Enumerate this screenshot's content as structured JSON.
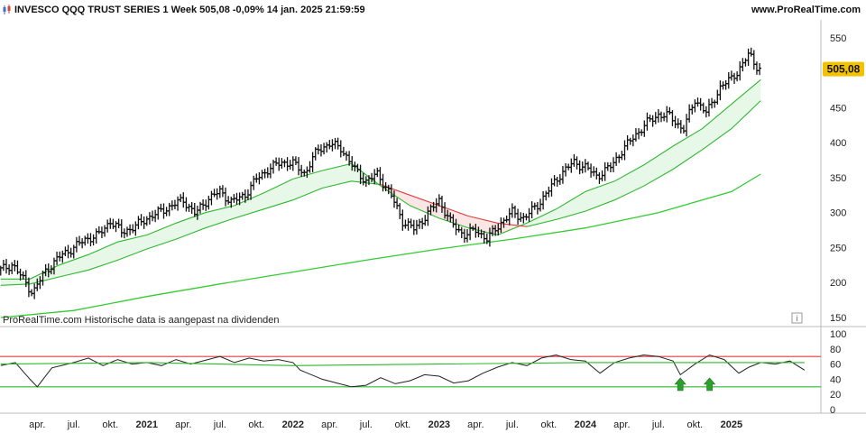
{
  "header": {
    "title": "INVESCO QQQ TRUST SERIES 1 Week 505,08 -0,09% 14 jan. 2025 21:59:59",
    "site": "www.ProRealTime.com"
  },
  "footer_note": "ProRealTime.com Historische data is aangepast na dividenden",
  "info_icon": "i",
  "colors": {
    "price_bars": "#111111",
    "ma_short": "#2eb82e",
    "ma_long": "#33cc33",
    "ma_bearish": "#e23b3b",
    "fill_green": "#e8f8e8",
    "fill_red": "#fbe6e6",
    "rsi_line": "#222222",
    "rsi_upper": "#e23b3b",
    "rsi_lower": "#2eb82e",
    "signal_arrow": "#2ca02c",
    "price_label_bg": "#f2c200"
  },
  "chart_data": [
    {
      "type": "ohlc",
      "name": "price",
      "timeframe": "Week",
      "last_price": "505,08",
      "ylim": [
        150,
        560
      ],
      "y_ticks": [
        150,
        200,
        250,
        300,
        350,
        400,
        450,
        500,
        550
      ],
      "x_ticks": [
        {
          "label": "apr.",
          "x": 2021.25
        },
        {
          "label": "jul.",
          "x": 2021.5
        },
        {
          "label": "okt.",
          "x": 2021.75
        },
        {
          "label": "2021",
          "x": 2022.0,
          "year": true
        },
        {
          "label": "apr.",
          "x": 2022.25
        },
        {
          "label": "jul.",
          "x": 2022.5
        },
        {
          "label": "okt.",
          "x": 2022.75
        },
        {
          "label": "2022",
          "x": 2023.0,
          "year": true
        },
        {
          "label": "apr.",
          "x": 2023.25
        },
        {
          "label": "jul.",
          "x": 2023.5
        },
        {
          "label": "okt.",
          "x": 2023.75
        },
        {
          "label": "2023",
          "x": 2024.0,
          "year": true
        },
        {
          "label": "apr.",
          "x": 2024.25
        },
        {
          "label": "jul.",
          "x": 2024.5
        },
        {
          "label": "okt.",
          "x": 2024.75
        },
        {
          "label": "2024",
          "x": 2025.0,
          "year": true
        },
        {
          "label": "apr.",
          "x": 2025.25
        },
        {
          "label": "jul.",
          "x": 2025.5
        },
        {
          "label": "okt.",
          "x": 2025.75
        },
        {
          "label": "2025",
          "x": 2026.0,
          "year": true
        }
      ],
      "series": [
        {
          "name": "close",
          "points": [
            [
              2021.0,
              218
            ],
            [
              2021.08,
              226
            ],
            [
              2021.17,
              200
            ],
            [
              2021.22,
              185
            ],
            [
              2021.3,
              215
            ],
            [
              2021.42,
              240
            ],
            [
              2021.5,
              250
            ],
            [
              2021.58,
              262
            ],
            [
              2021.67,
              268
            ],
            [
              2021.75,
              288
            ],
            [
              2021.83,
              272
            ],
            [
              2021.92,
              280
            ],
            [
              2022.0,
              292
            ],
            [
              2022.08,
              300
            ],
            [
              2022.17,
              310
            ],
            [
              2022.25,
              318
            ],
            [
              2022.33,
              298
            ],
            [
              2022.42,
              320
            ],
            [
              2022.5,
              330
            ],
            [
              2022.58,
              315
            ],
            [
              2022.67,
              325
            ],
            [
              2022.75,
              348
            ],
            [
              2022.83,
              362
            ],
            [
              2022.92,
              372
            ],
            [
              2023.0,
              370
            ],
            [
              2023.08,
              356
            ],
            [
              2023.17,
              390
            ],
            [
              2023.25,
              398
            ],
            [
              2023.33,
              392
            ],
            [
              2023.42,
              362
            ],
            [
              2023.5,
              345
            ],
            [
              2023.58,
              355
            ],
            [
              2023.67,
              325
            ],
            [
              2023.75,
              288
            ],
            [
              2023.83,
              276
            ],
            [
              2023.92,
              298
            ],
            [
              2024.0,
              318
            ],
            [
              2024.08,
              285
            ],
            [
              2024.17,
              268
            ],
            [
              2024.25,
              275
            ],
            [
              2024.33,
              262
            ],
            [
              2024.42,
              285
            ],
            [
              2024.5,
              300
            ],
            [
              2024.58,
              292
            ],
            [
              2024.67,
              310
            ],
            [
              2024.75,
              332
            ],
            [
              2024.83,
              355
            ],
            [
              2024.92,
              372
            ],
            [
              2025.0,
              365
            ],
            [
              2025.08,
              352
            ],
            [
              2025.17,
              365
            ],
            [
              2025.25,
              388
            ],
            [
              2025.33,
              408
            ],
            [
              2025.42,
              428
            ],
            [
              2025.5,
              440
            ],
            [
              2025.58,
              438
            ],
            [
              2025.67,
              418
            ],
            [
              2025.75,
              462
            ],
            [
              2025.83,
              442
            ],
            [
              2025.92,
              478
            ],
            [
              2026.0,
              492
            ],
            [
              2026.08,
              512
            ],
            [
              2026.12,
              528
            ],
            [
              2026.16,
              512
            ],
            [
              2026.2,
              505.08
            ]
          ]
        },
        {
          "name": "MA short",
          "points": [
            [
              2021.0,
              205
            ],
            [
              2021.2,
              205
            ],
            [
              2021.4,
              225
            ],
            [
              2021.6,
              240
            ],
            [
              2021.8,
              258
            ],
            [
              2022.0,
              268
            ],
            [
              2022.2,
              285
            ],
            [
              2022.4,
              300
            ],
            [
              2022.6,
              310
            ],
            [
              2022.8,
              328
            ],
            [
              2023.0,
              348
            ],
            [
              2023.2,
              360
            ],
            [
              2023.4,
              370
            ],
            [
              2023.6,
              338
            ],
            [
              2023.8,
              310
            ],
            [
              2024.0,
              292
            ],
            [
              2024.2,
              278
            ],
            [
              2024.4,
              268
            ],
            [
              2024.6,
              285
            ],
            [
              2024.8,
              305
            ],
            [
              2025.0,
              330
            ],
            [
              2025.2,
              345
            ],
            [
              2025.4,
              368
            ],
            [
              2025.6,
              395
            ],
            [
              2025.8,
              420
            ],
            [
              2026.0,
              455
            ],
            [
              2026.2,
              490
            ]
          ]
        },
        {
          "name": "MA medium",
          "points": [
            [
              2021.0,
              196
            ],
            [
              2021.2,
              198
            ],
            [
              2021.4,
              208
            ],
            [
              2021.6,
              218
            ],
            [
              2021.8,
              232
            ],
            [
              2022.0,
              248
            ],
            [
              2022.2,
              262
            ],
            [
              2022.4,
              278
            ],
            [
              2022.6,
              292
            ],
            [
              2022.8,
              305
            ],
            [
              2023.0,
              318
            ],
            [
              2023.2,
              335
            ],
            [
              2023.4,
              345
            ],
            [
              2023.6,
              340
            ],
            [
              2023.8,
              325
            ],
            [
              2024.0,
              310
            ],
            [
              2024.2,
              295
            ],
            [
              2024.4,
              285
            ],
            [
              2024.6,
              280
            ],
            [
              2024.8,
              290
            ],
            [
              2025.0,
              302
            ],
            [
              2025.2,
              318
            ],
            [
              2025.4,
              338
            ],
            [
              2025.6,
              362
            ],
            [
              2025.8,
              390
            ],
            [
              2026.0,
              420
            ],
            [
              2026.2,
              460
            ]
          ]
        },
        {
          "name": "MA long",
          "points": [
            [
              2021.0,
              150
            ],
            [
              2021.5,
              160
            ],
            [
              2022.0,
              180
            ],
            [
              2022.5,
              198
            ],
            [
              2023.0,
              215
            ],
            [
              2023.5,
              232
            ],
            [
              2024.0,
              248
            ],
            [
              2024.5,
              262
            ],
            [
              2025.0,
              278
            ],
            [
              2025.5,
              300
            ],
            [
              2026.0,
              330
            ],
            [
              2026.2,
              355
            ]
          ]
        }
      ]
    },
    {
      "type": "line",
      "name": "oscillator",
      "ylim": [
        0,
        100
      ],
      "y_ticks": [
        0,
        20,
        40,
        60,
        80,
        100
      ],
      "upper_line": 70,
      "lower_line": 30,
      "series": [
        {
          "name": "oscillator",
          "points": [
            [
              2021.0,
              58
            ],
            [
              2021.1,
              62
            ],
            [
              2021.2,
              40
            ],
            [
              2021.25,
              30
            ],
            [
              2021.35,
              55
            ],
            [
              2021.5,
              62
            ],
            [
              2021.6,
              68
            ],
            [
              2021.7,
              58
            ],
            [
              2021.8,
              66
            ],
            [
              2021.9,
              60
            ],
            [
              2022.0,
              62
            ],
            [
              2022.1,
              58
            ],
            [
              2022.2,
              66
            ],
            [
              2022.3,
              60
            ],
            [
              2022.4,
              65
            ],
            [
              2022.5,
              70
            ],
            [
              2022.6,
              62
            ],
            [
              2022.7,
              68
            ],
            [
              2022.8,
              64
            ],
            [
              2022.9,
              66
            ],
            [
              2023.0,
              62
            ],
            [
              2023.05,
              52
            ],
            [
              2023.1,
              48
            ],
            [
              2023.2,
              40
            ],
            [
              2023.3,
              35
            ],
            [
              2023.4,
              30
            ],
            [
              2023.5,
              32
            ],
            [
              2023.6,
              42
            ],
            [
              2023.7,
              34
            ],
            [
              2023.8,
              38
            ],
            [
              2023.9,
              46
            ],
            [
              2024.0,
              44
            ],
            [
              2024.1,
              35
            ],
            [
              2024.2,
              38
            ],
            [
              2024.3,
              48
            ],
            [
              2024.4,
              56
            ],
            [
              2024.5,
              62
            ],
            [
              2024.6,
              58
            ],
            [
              2024.7,
              68
            ],
            [
              2024.8,
              72
            ],
            [
              2024.9,
              66
            ],
            [
              2025.0,
              64
            ],
            [
              2025.1,
              48
            ],
            [
              2025.2,
              62
            ],
            [
              2025.3,
              68
            ],
            [
              2025.4,
              72
            ],
            [
              2025.5,
              70
            ],
            [
              2025.6,
              64
            ],
            [
              2025.65,
              46
            ],
            [
              2025.75,
              60
            ],
            [
              2025.85,
              72
            ],
            [
              2025.95,
              66
            ],
            [
              2026.05,
              48
            ],
            [
              2026.12,
              56
            ],
            [
              2026.2,
              62
            ],
            [
              2026.3,
              60
            ],
            [
              2026.4,
              64
            ],
            [
              2026.5,
              52
            ]
          ]
        },
        {
          "name": "signal",
          "points": [
            [
              2021.0,
              60
            ],
            [
              2022.0,
              62
            ],
            [
              2023.0,
              58
            ],
            [
              2024.0,
              60
            ],
            [
              2025.0,
              62
            ],
            [
              2026.5,
              62
            ]
          ]
        }
      ],
      "arrows_x": [
        2025.65,
        2025.85
      ]
    }
  ]
}
